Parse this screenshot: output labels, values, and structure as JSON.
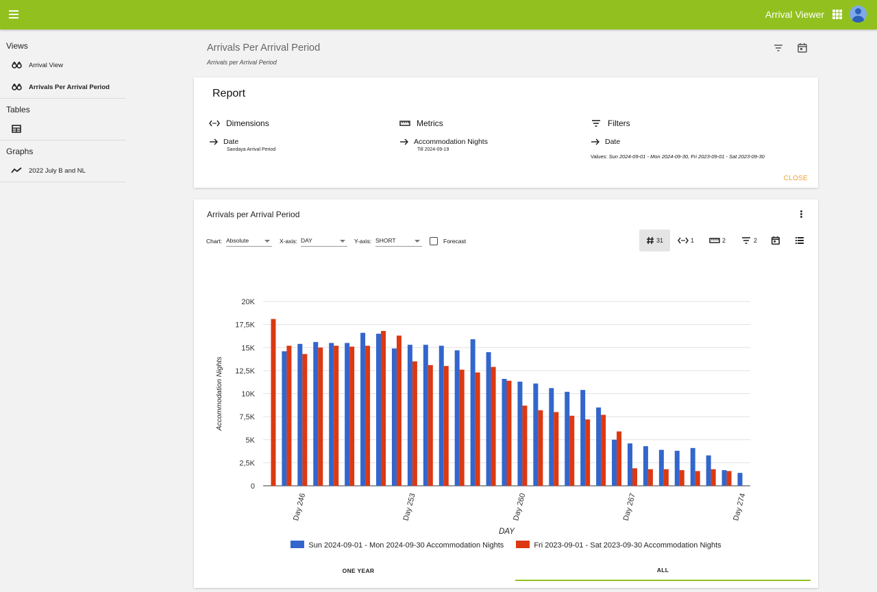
{
  "header": {
    "title": "Arrival Viewer"
  },
  "sidebar": {
    "views_heading": "Views",
    "views": [
      {
        "label": "Arrival View"
      },
      {
        "label": "Arrivals Per Arrival Period"
      }
    ],
    "tables_heading": "Tables",
    "graphs_heading": "Graphs",
    "graphs": [
      {
        "label": "2022 July B and NL"
      }
    ]
  },
  "page": {
    "title": "Arrivals Per Arrival Period",
    "subtitle": "Arrivals per Arrival Period"
  },
  "report": {
    "title": "Report",
    "dimensions": {
      "heading": "Dimensions",
      "item": "Date",
      "sub": "Sandaya Arrival Period"
    },
    "metrics": {
      "heading": "Metrics",
      "item": "Accommodation Nights",
      "sub": "Till 2024-09-19"
    },
    "filters": {
      "heading": "Filters",
      "item": "Date",
      "values_label": "Values:",
      "values": "Sun 2024-09-01 - Mon 2024-09-30, Fri 2023-09-01 - Sat 2023-09-30"
    },
    "close_label": "CLOSE"
  },
  "chart_card": {
    "title": "Arrivals per Arrival Period",
    "chart_label": "Chart:",
    "chart_value": "Absolute",
    "xaxis_label": "X-axis:",
    "xaxis_value": "DAY",
    "yaxis_label": "Y-axis:",
    "yaxis_value": "SHORT",
    "forecast_label": "Forecast",
    "toolbar": {
      "count": "31",
      "dimensions": "1",
      "metrics": "2",
      "filters": "2"
    },
    "tabs": [
      {
        "label": "ONE YEAR"
      },
      {
        "label": "ALL"
      }
    ]
  },
  "chart_data": {
    "type": "bar",
    "xlabel": "DAY",
    "ylabel": "Accommodation Nights",
    "ylim": [
      0,
      20000
    ],
    "yticks": [
      "0",
      "2,5K",
      "5K",
      "7,5K",
      "10K",
      "12,5K",
      "15K",
      "17,5K",
      "20K"
    ],
    "grid": true,
    "legend_position": "bottom",
    "tick_labels": [
      {
        "index": 2,
        "label": "Day 246"
      },
      {
        "index": 9,
        "label": "Day 253"
      },
      {
        "index": 16,
        "label": "Day 260"
      },
      {
        "index": 23,
        "label": "Day 267"
      },
      {
        "index": 30,
        "label": "Day 274"
      }
    ],
    "series": [
      {
        "name": "Sun 2024-09-01 - Mon 2024-09-30 Accommodation Nights",
        "color": "#3366cc",
        "values": [
          null,
          14600,
          15400,
          15600,
          15500,
          15500,
          16600,
          16500,
          14900,
          15300,
          15300,
          15200,
          14700,
          15900,
          14500,
          11600,
          11300,
          11100,
          10600,
          10200,
          10400,
          8500,
          5000,
          4600,
          4300,
          3900,
          3800,
          4100,
          3300,
          1700,
          1400
        ]
      },
      {
        "name": "Fri 2023-09-01 - Sat 2023-09-30 Accommodation Nights",
        "color": "#dc3912",
        "values": [
          18100,
          15200,
          14300,
          15000,
          15200,
          15100,
          15200,
          16800,
          16300,
          13500,
          13100,
          13000,
          12600,
          12300,
          12900,
          11400,
          8700,
          8200,
          8000,
          7600,
          7200,
          7700,
          5900,
          1900,
          1800,
          1800,
          1700,
          1600,
          1800,
          1600,
          null
        ]
      }
    ]
  }
}
